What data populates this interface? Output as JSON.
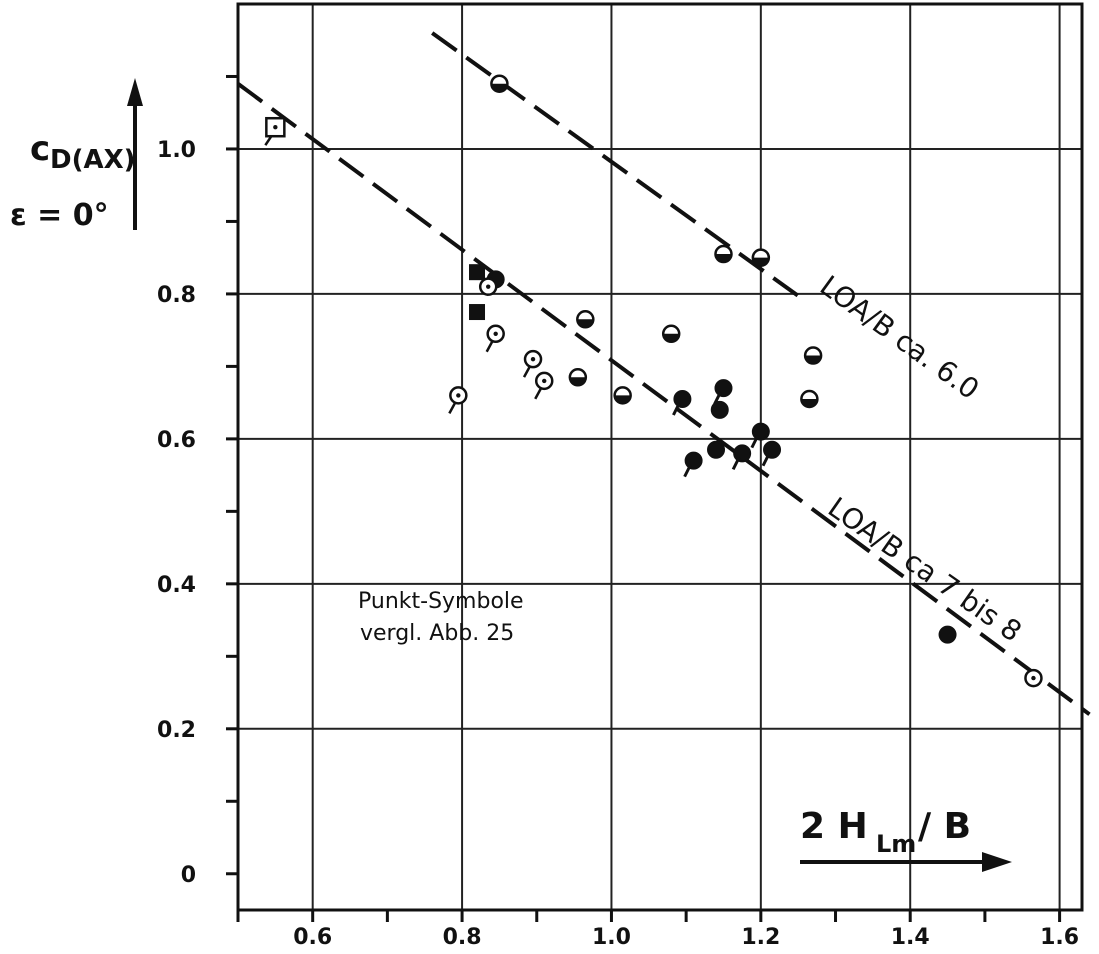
{
  "chart_data": {
    "type": "scatter",
    "ylabel_main": "c",
    "ylabel_sub": "D(AX)",
    "ylabel_condition": "ε = 0°",
    "xlabel_main": "2 H",
    "xlabel_sub": "Lm",
    "xlabel_tail": " / B",
    "xlim": [
      0.5,
      1.63
    ],
    "ylim": [
      -0.05,
      1.2
    ],
    "x_ticks": [
      0.6,
      0.8,
      1.0,
      1.2,
      1.4,
      1.6
    ],
    "x_tick_labels": [
      "0.6",
      "0.8",
      "1.0",
      "1.2",
      "1.4",
      "1.6"
    ],
    "y_ticks": [
      0,
      0.2,
      0.4,
      0.6,
      0.8,
      1.0
    ],
    "y_tick_labels": [
      "0",
      "0.2",
      "0.4",
      "0.6",
      "0.8",
      "1.0"
    ],
    "grid": true,
    "annotation_line1": "Punkt-Symbole",
    "annotation_line2": "vergl. Abb. 25",
    "trend_lines": [
      {
        "label": "LOA/B ca. 6.0",
        "x": [
          0.76,
          1.26
        ],
        "y": [
          1.16,
          0.79
        ]
      },
      {
        "label": "LOA/B ca 7 bis 8",
        "x": [
          0.5,
          1.64
        ],
        "y": [
          1.09,
          0.22
        ]
      }
    ],
    "points": [
      {
        "x": 0.55,
        "y": 1.03,
        "symbol": "square-open"
      },
      {
        "x": 0.85,
        "y": 1.09,
        "symbol": "half"
      },
      {
        "x": 1.15,
        "y": 0.855,
        "symbol": "half"
      },
      {
        "x": 1.2,
        "y": 0.85,
        "symbol": "half"
      },
      {
        "x": 0.82,
        "y": 0.83,
        "symbol": "square-filled"
      },
      {
        "x": 0.845,
        "y": 0.82,
        "symbol": "filled-flag"
      },
      {
        "x": 0.835,
        "y": 0.81,
        "symbol": "dot-open"
      },
      {
        "x": 0.82,
        "y": 0.775,
        "symbol": "square-filled"
      },
      {
        "x": 0.845,
        "y": 0.745,
        "symbol": "dot-open-flag"
      },
      {
        "x": 0.965,
        "y": 0.765,
        "symbol": "half"
      },
      {
        "x": 1.08,
        "y": 0.745,
        "symbol": "half"
      },
      {
        "x": 0.895,
        "y": 0.71,
        "symbol": "dot-open-flag"
      },
      {
        "x": 1.27,
        "y": 0.715,
        "symbol": "half"
      },
      {
        "x": 0.955,
        "y": 0.685,
        "symbol": "half"
      },
      {
        "x": 0.91,
        "y": 0.68,
        "symbol": "dot-open-flag"
      },
      {
        "x": 1.15,
        "y": 0.67,
        "symbol": "filled-flag"
      },
      {
        "x": 0.795,
        "y": 0.66,
        "symbol": "dot-open-flag"
      },
      {
        "x": 1.015,
        "y": 0.66,
        "symbol": "half"
      },
      {
        "x": 1.095,
        "y": 0.655,
        "symbol": "filled-flag"
      },
      {
        "x": 1.265,
        "y": 0.655,
        "symbol": "half"
      },
      {
        "x": 1.145,
        "y": 0.64,
        "symbol": "filled"
      },
      {
        "x": 1.2,
        "y": 0.61,
        "symbol": "filled-flag"
      },
      {
        "x": 1.14,
        "y": 0.585,
        "symbol": "filled"
      },
      {
        "x": 1.175,
        "y": 0.58,
        "symbol": "filled-flag"
      },
      {
        "x": 1.215,
        "y": 0.585,
        "symbol": "filled-flag"
      },
      {
        "x": 1.11,
        "y": 0.57,
        "symbol": "filled-flag"
      },
      {
        "x": 1.45,
        "y": 0.33,
        "symbol": "filled"
      },
      {
        "x": 1.565,
        "y": 0.27,
        "symbol": "dot-open"
      }
    ]
  }
}
